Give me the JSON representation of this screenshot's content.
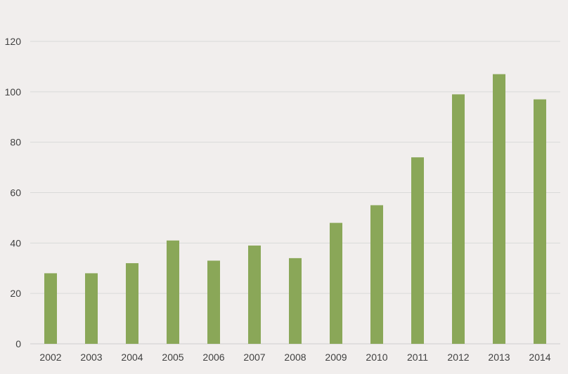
{
  "colors": {
    "background": "#f1eeed",
    "bar": "#8aa758",
    "gridline": "#d9d9d9",
    "text": "#404040"
  },
  "chart_data": {
    "type": "bar",
    "title": "",
    "xlabel": "",
    "ylabel": "",
    "categories": [
      "2002",
      "2003",
      "2004",
      "2005",
      "2006",
      "2007",
      "2008",
      "2009",
      "2010",
      "2011",
      "2012",
      "2013",
      "2014"
    ],
    "values": [
      28,
      28,
      32,
      41,
      33,
      39,
      34,
      48,
      55,
      74,
      99,
      107,
      97
    ],
    "ylim": [
      0,
      120
    ],
    "yticks": [
      0,
      20,
      40,
      60,
      80,
      100,
      120
    ],
    "grid": true,
    "legend": "none"
  }
}
